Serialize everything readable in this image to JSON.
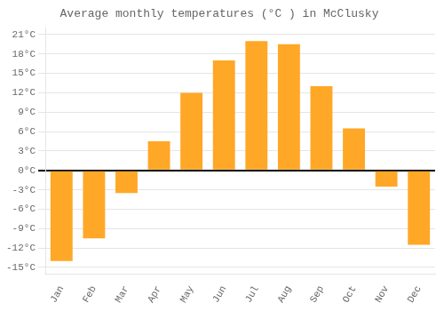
{
  "chart_data": {
    "type": "bar",
    "title": "Average monthly temperatures (°C ) in McClusky",
    "categories": [
      "Jan",
      "Feb",
      "Mar",
      "Apr",
      "May",
      "Jun",
      "Jul",
      "Aug",
      "Sep",
      "Oct",
      "Nov",
      "Dec"
    ],
    "values": [
      -14,
      -10.5,
      -3.5,
      4.5,
      12,
      17,
      20,
      19.5,
      13,
      6.5,
      -2.5,
      -11.5
    ],
    "color": "#FFA726",
    "ylim": [
      -16,
      22
    ],
    "yticks": [
      {
        "value": -15,
        "label": "-15°C"
      },
      {
        "value": -12,
        "label": "-12°C"
      },
      {
        "value": -9,
        "label": "-9°C"
      },
      {
        "value": -6,
        "label": "-6°C"
      },
      {
        "value": -3,
        "label": "-3°C"
      },
      {
        "value": 0,
        "label": "0°C"
      },
      {
        "value": 3,
        "label": "3°C"
      },
      {
        "value": 6,
        "label": "6°C"
      },
      {
        "value": 9,
        "label": "9°C"
      },
      {
        "value": 12,
        "label": "12°C"
      },
      {
        "value": 15,
        "label": "15°C"
      },
      {
        "value": 18,
        "label": "18°C"
      },
      {
        "value": 21,
        "label": "21°C"
      }
    ],
    "grid": true
  }
}
